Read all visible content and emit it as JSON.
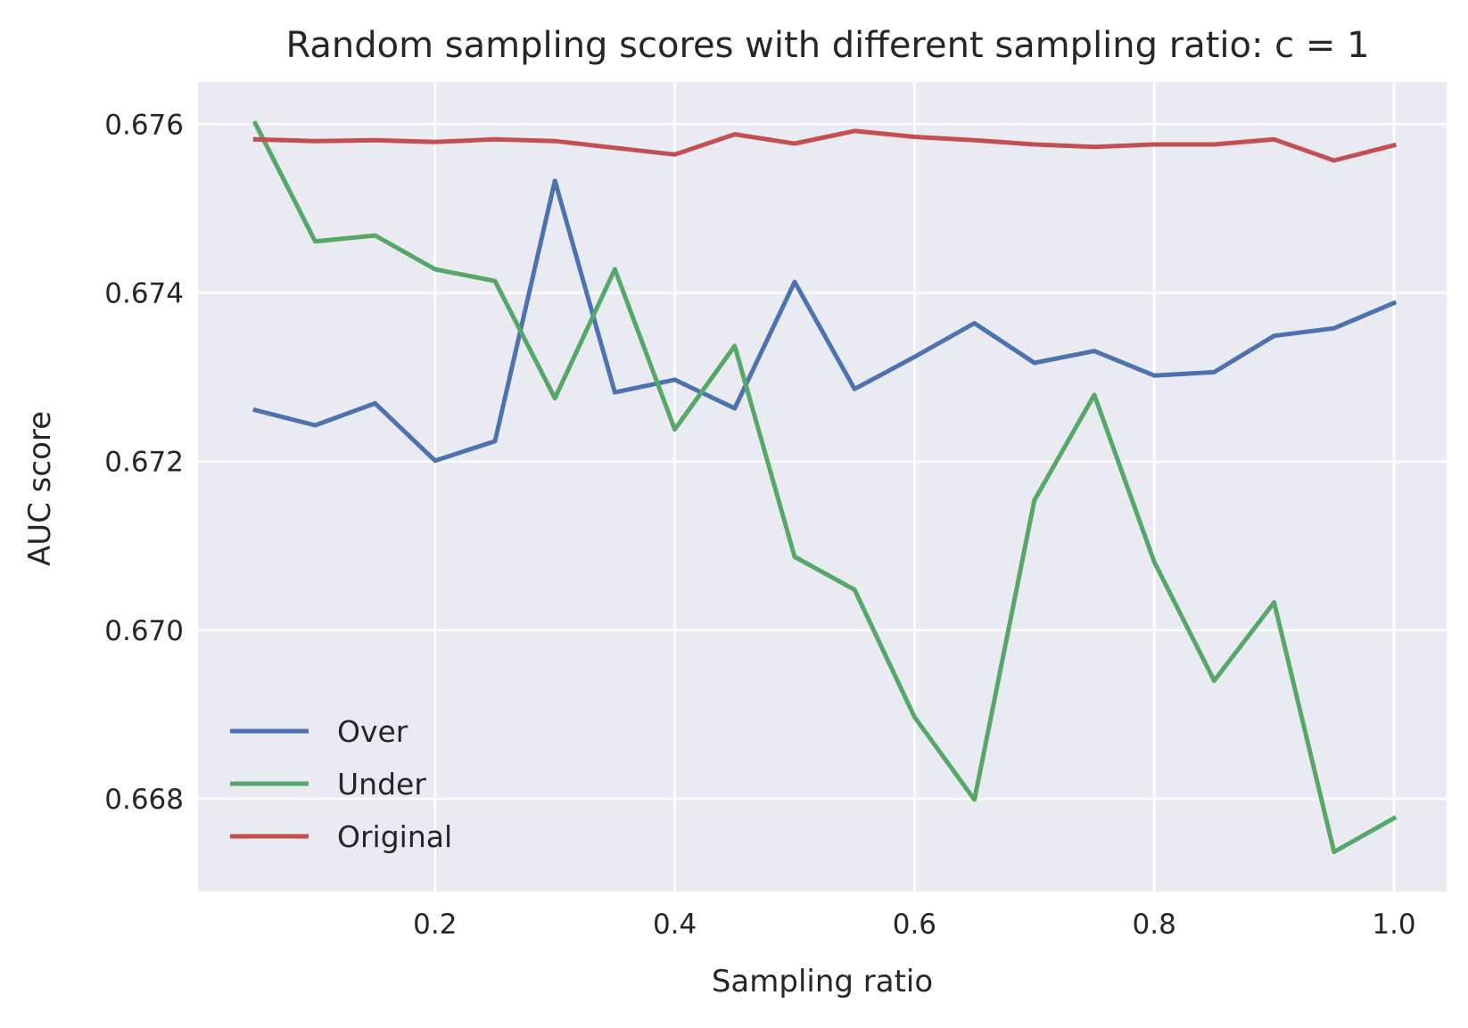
{
  "chart_data": {
    "type": "line",
    "title": "Random sampling scores with different sampling ratio: c = 1",
    "xlabel": "Sampling ratio",
    "ylabel": "AUC score",
    "xlim": [
      0.0,
      1.0
    ],
    "ylim": [
      0.6669,
      0.6765
    ],
    "x_ticks": [
      0.2,
      0.4,
      0.6,
      0.8,
      1.0
    ],
    "x_tick_labels": [
      "0.2",
      "0.4",
      "0.6",
      "0.8",
      "1.0"
    ],
    "y_ticks": [
      0.668,
      0.67,
      0.672,
      0.674,
      0.676
    ],
    "y_tick_labels": [
      "0.668",
      "0.670",
      "0.672",
      "0.674",
      "0.676"
    ],
    "grid": true,
    "legend_position": "lower-left",
    "background_color": "#eaeaf2",
    "x": [
      0.05,
      0.1,
      0.15,
      0.2,
      0.25,
      0.3,
      0.35,
      0.4,
      0.45,
      0.5,
      0.55,
      0.6,
      0.65,
      0.7,
      0.75,
      0.8,
      0.85,
      0.9,
      0.95,
      1.0
    ],
    "series": [
      {
        "name": "Over",
        "color": "#4c72b0",
        "values": [
          0.67261,
          0.67243,
          0.67269,
          0.67201,
          0.67224,
          0.67533,
          0.67282,
          0.67297,
          0.67263,
          0.67413,
          0.67286,
          0.67324,
          0.67364,
          0.67317,
          0.67331,
          0.67302,
          0.67306,
          0.67349,
          0.67358,
          0.67388
        ]
      },
      {
        "name": "Under",
        "color": "#55a868",
        "values": [
          0.67601,
          0.67461,
          0.67468,
          0.67428,
          0.67414,
          0.67275,
          0.67428,
          0.67238,
          0.67337,
          0.67087,
          0.67048,
          0.66897,
          0.66799,
          0.67154,
          0.67279,
          0.67081,
          0.6694,
          0.67033,
          0.66737,
          0.66777
        ]
      },
      {
        "name": "Original",
        "color": "#c44e52",
        "values": [
          0.67582,
          0.6758,
          0.67581,
          0.67579,
          0.67582,
          0.6758,
          0.67572,
          0.67564,
          0.67588,
          0.67577,
          0.67592,
          0.67585,
          0.67581,
          0.67576,
          0.67573,
          0.67576,
          0.67576,
          0.67582,
          0.67557,
          0.67575
        ]
      }
    ]
  }
}
